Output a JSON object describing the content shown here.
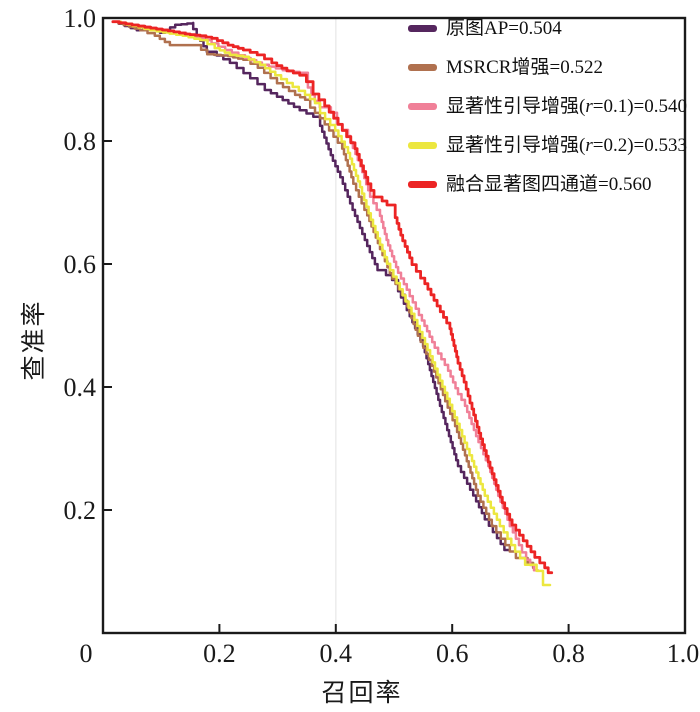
{
  "figure": {
    "background": "#ffffff",
    "axis_color": "#1a1a1a",
    "grid_color": "#ededed",
    "text_color": "#1a1a1a"
  },
  "chart_data": {
    "type": "line",
    "title": "",
    "xlabel": "召回率",
    "ylabel": "查准率",
    "xlim": [
      0,
      1.0
    ],
    "ylim": [
      0,
      1.0
    ],
    "grid": "single faint vertical line at x=0.4",
    "legend_position": "top-right-inside",
    "x_ticks": [
      {
        "label": "0",
        "value": 0,
        "mark": false
      },
      {
        "label": "0.2",
        "value": 0.2,
        "mark": true
      },
      {
        "label": "0.4",
        "value": 0.4,
        "mark": true
      },
      {
        "label": "0.6",
        "value": 0.6,
        "mark": true
      },
      {
        "label": "0.8",
        "value": 0.8,
        "mark": true
      },
      {
        "label": "1.0",
        "value": 1.0,
        "mark": false
      }
    ],
    "y_ticks": [
      {
        "label": "0.2",
        "value": 0.2,
        "mark": true
      },
      {
        "label": "0.4",
        "value": 0.4,
        "mark": true
      },
      {
        "label": "0.6",
        "value": 0.6,
        "mark": true
      },
      {
        "label": "0.8",
        "value": 0.8,
        "mark": true
      },
      {
        "label": "1.0",
        "value": 1.0,
        "mark": false
      }
    ],
    "series": [
      {
        "name": "原图AP=0.504",
        "label_pre": "原图AP=0.504",
        "label_italic": "",
        "label_post": "",
        "ap": 0.504,
        "color": "#55265e",
        "width": 2.5,
        "points": [
          [
            0.017,
            0.994
          ],
          [
            0.058,
            0.98
          ],
          [
            0.081,
            0.984
          ],
          [
            0.098,
            0.976
          ],
          [
            0.124,
            0.989
          ],
          [
            0.155,
            0.992
          ],
          [
            0.167,
            0.972
          ],
          [
            0.184,
            0.945
          ],
          [
            0.218,
            0.927
          ],
          [
            0.253,
            0.902
          ],
          [
            0.278,
            0.883
          ],
          [
            0.299,
            0.872
          ],
          [
            0.338,
            0.85
          ],
          [
            0.373,
            0.834
          ],
          [
            0.395,
            0.777
          ],
          [
            0.412,
            0.741
          ],
          [
            0.433,
            0.688
          ],
          [
            0.454,
            0.639
          ],
          [
            0.476,
            0.59
          ],
          [
            0.507,
            0.566
          ],
          [
            0.527,
            0.525
          ],
          [
            0.55,
            0.476
          ],
          [
            0.579,
            0.379
          ],
          [
            0.61,
            0.281
          ],
          [
            0.636,
            0.233
          ],
          [
            0.656,
            0.195
          ],
          [
            0.677,
            0.164
          ],
          [
            0.696,
            0.135
          ]
        ]
      },
      {
        "name": "MSRCR增强=0.522",
        "label_pre": "MSRCR增强=0.522",
        "label_italic": "",
        "label_post": "",
        "ap": 0.522,
        "color": "#b0714f",
        "width": 2.5,
        "points": [
          [
            0.017,
            0.994
          ],
          [
            0.064,
            0.98
          ],
          [
            0.089,
            0.971
          ],
          [
            0.115,
            0.956
          ],
          [
            0.158,
            0.956
          ],
          [
            0.179,
            0.941
          ],
          [
            0.215,
            0.938
          ],
          [
            0.241,
            0.932
          ],
          [
            0.266,
            0.919
          ],
          [
            0.299,
            0.894
          ],
          [
            0.33,
            0.875
          ],
          [
            0.356,
            0.863
          ],
          [
            0.381,
            0.837
          ],
          [
            0.411,
            0.797
          ],
          [
            0.43,
            0.741
          ],
          [
            0.454,
            0.688
          ],
          [
            0.476,
            0.634
          ],
          [
            0.497,
            0.585
          ],
          [
            0.519,
            0.55
          ],
          [
            0.541,
            0.493
          ],
          [
            0.565,
            0.444
          ],
          [
            0.588,
            0.387
          ],
          [
            0.605,
            0.346
          ],
          [
            0.622,
            0.298
          ],
          [
            0.644,
            0.233
          ],
          [
            0.668,
            0.184
          ],
          [
            0.699,
            0.143
          ],
          [
            0.72,
            0.122
          ],
          [
            0.739,
            0.106
          ]
        ]
      },
      {
        "name": "显著性引导增强(r=0.1)=0.540",
        "label_pre": "显著性引导增强(",
        "label_italic": "r",
        "label_post": "=0.1)=0.540",
        "ap": 0.54,
        "color": "#f08098",
        "width": 2.5,
        "points": [
          [
            0.017,
            0.994
          ],
          [
            0.081,
            0.984
          ],
          [
            0.132,
            0.976
          ],
          [
            0.175,
            0.964
          ],
          [
            0.21,
            0.948
          ],
          [
            0.244,
            0.935
          ],
          [
            0.273,
            0.924
          ],
          [
            0.309,
            0.915
          ],
          [
            0.338,
            0.911
          ],
          [
            0.352,
            0.899
          ],
          [
            0.364,
            0.875
          ],
          [
            0.381,
            0.855
          ],
          [
            0.402,
            0.837
          ],
          [
            0.421,
            0.818
          ],
          [
            0.442,
            0.769
          ],
          [
            0.459,
            0.72
          ],
          [
            0.476,
            0.688
          ],
          [
            0.49,
            0.639
          ],
          [
            0.507,
            0.595
          ],
          [
            0.527,
            0.558
          ],
          [
            0.548,
            0.517
          ],
          [
            0.57,
            0.473
          ],
          [
            0.593,
            0.436
          ],
          [
            0.61,
            0.398
          ],
          [
            0.622,
            0.379
          ],
          [
            0.641,
            0.33
          ],
          [
            0.662,
            0.281
          ],
          [
            0.679,
            0.233
          ],
          [
            0.699,
            0.184
          ],
          [
            0.72,
            0.143
          ],
          [
            0.734,
            0.119
          ],
          [
            0.747,
            0.102
          ]
        ]
      },
      {
        "name": "显著性引导增强(r=0.2)=0.533",
        "label_pre": "显著性引导增强(",
        "label_italic": "r",
        "label_post": "=0.2)=0.533",
        "ap": 0.533,
        "color": "#ece73f",
        "width": 2.5,
        "points": [
          [
            0.021,
            0.994
          ],
          [
            0.081,
            0.98
          ],
          [
            0.137,
            0.971
          ],
          [
            0.167,
            0.964
          ],
          [
            0.192,
            0.951
          ],
          [
            0.218,
            0.94
          ],
          [
            0.241,
            0.937
          ],
          [
            0.27,
            0.924
          ],
          [
            0.296,
            0.907
          ],
          [
            0.326,
            0.888
          ],
          [
            0.347,
            0.875
          ],
          [
            0.373,
            0.855
          ],
          [
            0.399,
            0.826
          ],
          [
            0.421,
            0.79
          ],
          [
            0.445,
            0.725
          ],
          [
            0.464,
            0.672
          ],
          [
            0.488,
            0.611
          ],
          [
            0.51,
            0.569
          ],
          [
            0.54,
            0.509
          ],
          [
            0.562,
            0.46
          ],
          [
            0.579,
            0.42
          ],
          [
            0.6,
            0.371
          ],
          [
            0.617,
            0.33
          ],
          [
            0.634,
            0.289
          ],
          [
            0.656,
            0.233
          ],
          [
            0.682,
            0.184
          ],
          [
            0.708,
            0.143
          ],
          [
            0.734,
            0.111
          ],
          [
            0.756,
            0.091
          ],
          [
            0.768,
            0.078
          ]
        ]
      },
      {
        "name": "融合显著图四通道=0.560",
        "label_pre": "融合显著图四通道=0.560",
        "label_italic": "",
        "label_post": "",
        "ap": 0.56,
        "color": "#ec2424",
        "width": 2.8,
        "points": [
          [
            0.017,
            0.994
          ],
          [
            0.072,
            0.985
          ],
          [
            0.112,
            0.979
          ],
          [
            0.141,
            0.974
          ],
          [
            0.167,
            0.971
          ],
          [
            0.187,
            0.967
          ],
          [
            0.215,
            0.956
          ],
          [
            0.241,
            0.948
          ],
          [
            0.265,
            0.94
          ],
          [
            0.29,
            0.927
          ],
          [
            0.316,
            0.914
          ],
          [
            0.338,
            0.907
          ],
          [
            0.361,
            0.886
          ],
          [
            0.381,
            0.867
          ],
          [
            0.404,
            0.837
          ],
          [
            0.433,
            0.797
          ],
          [
            0.455,
            0.741
          ],
          [
            0.471,
            0.709
          ],
          [
            0.488,
            0.696
          ],
          [
            0.502,
            0.685
          ],
          [
            0.515,
            0.647
          ],
          [
            0.531,
            0.61
          ],
          [
            0.553,
            0.577
          ],
          [
            0.574,
            0.541
          ],
          [
            0.596,
            0.504
          ],
          [
            0.61,
            0.449
          ],
          [
            0.624,
            0.408
          ],
          [
            0.634,
            0.374
          ],
          [
            0.649,
            0.325
          ],
          [
            0.665,
            0.278
          ],
          [
            0.686,
            0.221
          ],
          [
            0.703,
            0.184
          ],
          [
            0.722,
            0.159
          ],
          [
            0.742,
            0.132
          ],
          [
            0.759,
            0.114
          ],
          [
            0.771,
            0.098
          ]
        ]
      }
    ]
  }
}
